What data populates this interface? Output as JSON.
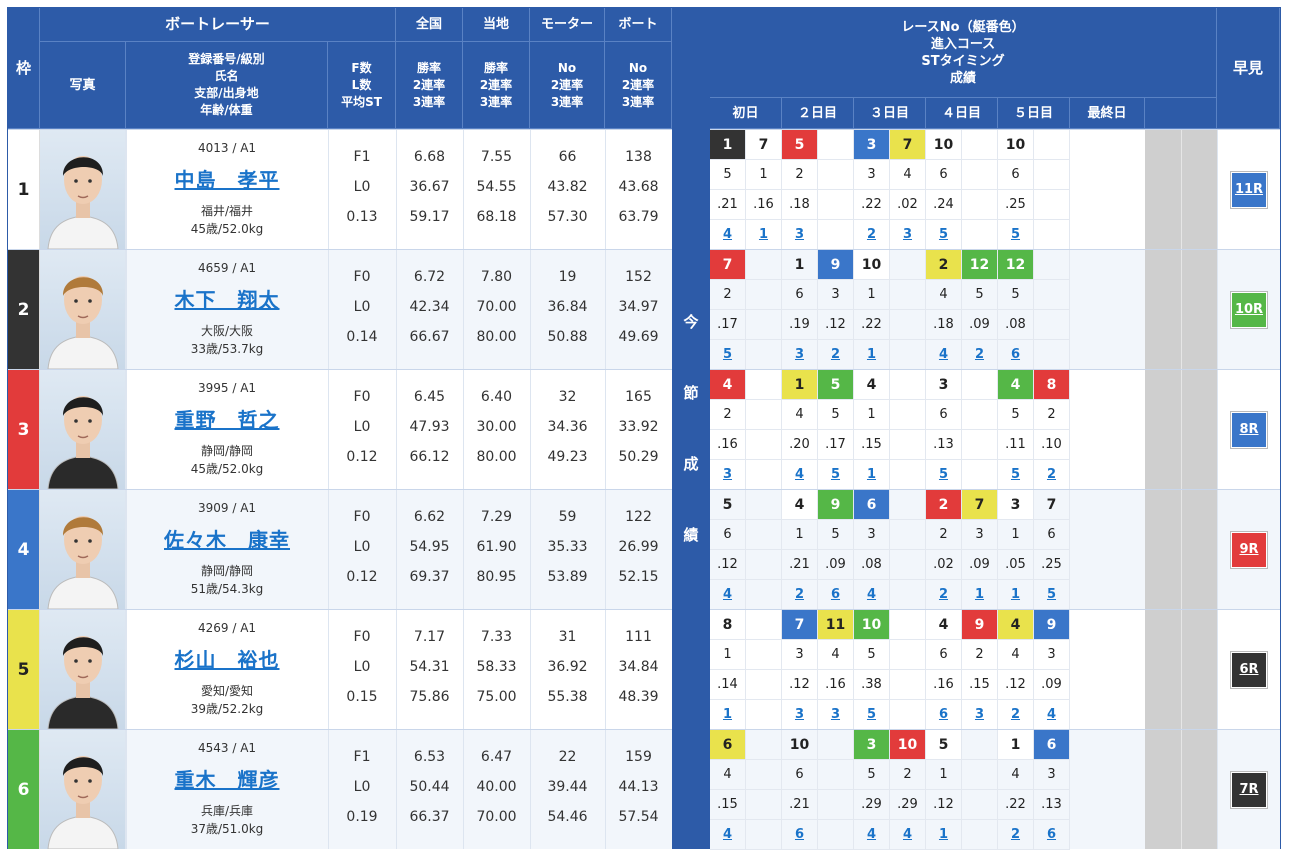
{
  "header": {
    "waku": "枠",
    "boat_racer": "ボートレーサー",
    "photo": "写真",
    "profile": [
      "登録番号/級別",
      "氏名",
      "支部/出身地",
      "年齢/体重"
    ],
    "flst": [
      "F数",
      "L数",
      "平均ST"
    ],
    "zenkoku": "全国",
    "touchi": "当地",
    "motor": "モーター",
    "boat": "ボート",
    "rates": [
      "勝率",
      "2連率",
      "3連率"
    ],
    "no_rates": [
      "No",
      "2連率",
      "3連率"
    ],
    "race_info": [
      "レースNo（艇番色）",
      "進入コース",
      "STタイミング",
      "成績"
    ],
    "days": [
      "初日",
      "２日目",
      "３日目",
      "４日目",
      "５日目",
      "最終日"
    ],
    "hayami": "早見",
    "konsetsu": [
      "今",
      "節",
      "成",
      "績"
    ]
  },
  "colors": {
    "header_bg": "#2d5ba8",
    "boat1": "#ffffff",
    "boat2": "#333333",
    "boat3": "#e23b3b",
    "boat4": "#3a76c9",
    "boat5": "#e9e24c",
    "boat6": "#55b747"
  },
  "racers": [
    {
      "waku": "1",
      "reg": "4013",
      "cls": "A1",
      "name": "中島　孝平",
      "branch": "福井/福井",
      "age_weight": "45歳/52.0kg",
      "f": "F1",
      "l": "L0",
      "st": "0.13",
      "zenkoku": [
        "6.68",
        "36.67",
        "59.17"
      ],
      "touchi": [
        "7.55",
        "54.55",
        "68.18"
      ],
      "motor": [
        "66",
        "43.82",
        "57.30"
      ],
      "boat": [
        "138",
        "43.68",
        "63.79"
      ],
      "hayami": "11R",
      "hayami_color": "#3a76c9"
    },
    {
      "waku": "2",
      "reg": "4659",
      "cls": "A1",
      "name": "木下　翔太",
      "branch": "大阪/大阪",
      "age_weight": "33歳/53.7kg",
      "f": "F0",
      "l": "L0",
      "st": "0.14",
      "zenkoku": [
        "6.72",
        "42.34",
        "66.67"
      ],
      "touchi": [
        "7.80",
        "70.00",
        "80.00"
      ],
      "motor": [
        "19",
        "36.84",
        "50.88"
      ],
      "boat": [
        "152",
        "34.97",
        "49.69"
      ],
      "hayami": "10R",
      "hayami_color": "#55b747"
    },
    {
      "waku": "3",
      "reg": "3995",
      "cls": "A1",
      "name": "重野　哲之",
      "branch": "静岡/静岡",
      "age_weight": "45歳/52.0kg",
      "f": "F0",
      "l": "L0",
      "st": "0.12",
      "zenkoku": [
        "6.45",
        "47.93",
        "66.12"
      ],
      "touchi": [
        "6.40",
        "30.00",
        "80.00"
      ],
      "motor": [
        "32",
        "34.36",
        "49.23"
      ],
      "boat": [
        "165",
        "33.92",
        "50.29"
      ],
      "hayami": "8R",
      "hayami_color": "#3a76c9"
    },
    {
      "waku": "4",
      "reg": "3909",
      "cls": "A1",
      "name": "佐々木　康幸",
      "branch": "静岡/静岡",
      "age_weight": "51歳/54.3kg",
      "f": "F0",
      "l": "L0",
      "st": "0.12",
      "zenkoku": [
        "6.62",
        "54.95",
        "69.37"
      ],
      "touchi": [
        "7.29",
        "61.90",
        "80.95"
      ],
      "motor": [
        "59",
        "35.33",
        "53.89"
      ],
      "boat": [
        "122",
        "26.99",
        "52.15"
      ],
      "hayami": "9R",
      "hayami_color": "#e23b3b"
    },
    {
      "waku": "5",
      "reg": "4269",
      "cls": "A1",
      "name": "杉山　裕也",
      "branch": "愛知/愛知",
      "age_weight": "39歳/52.2kg",
      "f": "F0",
      "l": "L0",
      "st": "0.15",
      "zenkoku": [
        "7.17",
        "54.31",
        "75.86"
      ],
      "touchi": [
        "7.33",
        "58.33",
        "75.00"
      ],
      "motor": [
        "31",
        "36.92",
        "55.38"
      ],
      "boat": [
        "111",
        "34.84",
        "48.39"
      ],
      "hayami": "6R",
      "hayami_color": "#333333"
    },
    {
      "waku": "6",
      "reg": "4543",
      "cls": "A1",
      "name": "重木　輝彦",
      "branch": "兵庫/兵庫",
      "age_weight": "37歳/51.0kg",
      "f": "F1",
      "l": "L0",
      "st": "0.19",
      "zenkoku": [
        "6.53",
        "50.44",
        "66.37"
      ],
      "touchi": [
        "6.47",
        "40.00",
        "70.00"
      ],
      "motor": [
        "22",
        "39.44",
        "54.46"
      ],
      "boat": [
        "159",
        "44.13",
        "57.54"
      ],
      "hayami": "7R",
      "hayami_color": "#333333"
    }
  ],
  "results": [
    [
      [
        "1",
        "5",
        ".21",
        "4",
        1
      ],
      [
        "7",
        "1",
        ".16",
        "1",
        0
      ],
      [
        "5",
        "2",
        ".18",
        "3",
        2
      ],
      [
        "",
        "",
        "",
        "",
        -1
      ],
      [
        "3",
        "3",
        ".22",
        "2",
        3
      ],
      [
        "7",
        "4",
        ".02",
        "3",
        4
      ],
      [
        "10",
        "6",
        ".24",
        "5",
        6
      ],
      [
        "",
        "",
        "",
        "",
        -1
      ],
      [
        "10",
        "6",
        ".25",
        "5",
        6
      ],
      [
        "",
        "",
        "",
        "",
        -1
      ]
    ],
    [
      [
        "7",
        "2",
        ".17",
        "5",
        2
      ],
      [
        "",
        "",
        "",
        "",
        -1
      ],
      [
        "1",
        "6",
        ".19",
        "3",
        6
      ],
      [
        "9",
        "3",
        ".12",
        "2",
        3
      ],
      [
        "10",
        "1",
        ".22",
        "1",
        0
      ],
      [
        "",
        "",
        "",
        "",
        -1
      ],
      [
        "2",
        "4",
        ".18",
        "4",
        4
      ],
      [
        "12",
        "5",
        ".09",
        "2",
        5
      ],
      [
        "12",
        "5",
        ".08",
        "6",
        5
      ],
      [
        "",
        "",
        "",
        "",
        -1
      ]
    ],
    [
      [
        "4",
        "2",
        ".16",
        "3",
        2
      ],
      [
        "",
        "",
        "",
        "",
        -1
      ],
      [
        "1",
        "4",
        ".20",
        "4",
        4
      ],
      [
        "5",
        "5",
        ".17",
        "5",
        5
      ],
      [
        "4",
        "1",
        ".15",
        "1",
        0
      ],
      [
        "",
        "",
        "",
        "",
        -1
      ],
      [
        "3",
        "6",
        ".13",
        "5",
        6
      ],
      [
        "",
        "",
        "",
        "",
        -1
      ],
      [
        "4",
        "5",
        ".11",
        "5",
        5
      ],
      [
        "8",
        "2",
        ".10",
        "2",
        2
      ]
    ],
    [
      [
        "5",
        "6",
        ".12",
        "4",
        6
      ],
      [
        "",
        "",
        "",
        "",
        -1
      ],
      [
        "4",
        "1",
        ".21",
        "2",
        0
      ],
      [
        "9",
        "5",
        ".09",
        "6",
        5
      ],
      [
        "6",
        "3",
        ".08",
        "4",
        3
      ],
      [
        "",
        "",
        "",
        "",
        -1
      ],
      [
        "2",
        "2",
        ".02",
        "2",
        2
      ],
      [
        "7",
        "3",
        ".09",
        "1",
        4
      ],
      [
        "3",
        "1",
        ".05",
        "1",
        0
      ],
      [
        "7",
        "6",
        ".25",
        "5",
        6
      ]
    ],
    [
      [
        "8",
        "1",
        ".14",
        "1",
        0
      ],
      [
        "",
        "",
        "",
        "",
        -1
      ],
      [
        "7",
        "3",
        ".12",
        "3",
        3
      ],
      [
        "11",
        "4",
        ".16",
        "3",
        4
      ],
      [
        "10",
        "5",
        ".38",
        "5",
        5
      ],
      [
        "",
        "",
        "",
        "",
        -1
      ],
      [
        "4",
        "6",
        ".16",
        "6",
        6
      ],
      [
        "9",
        "2",
        ".15",
        "3",
        2
      ],
      [
        "4",
        "4",
        ".12",
        "2",
        4
      ],
      [
        "9",
        "3",
        ".09",
        "4",
        3
      ]
    ],
    [
      [
        "6",
        "4",
        ".15",
        "4",
        4
      ],
      [
        "",
        "",
        "",
        "",
        -1
      ],
      [
        "10",
        "6",
        ".21",
        "6",
        6
      ],
      [
        "",
        "",
        "",
        "",
        -1
      ],
      [
        "3",
        "5",
        ".29",
        "4",
        5
      ],
      [
        "10",
        "2",
        ".29",
        "4",
        2
      ],
      [
        "5",
        "1",
        ".12",
        "1",
        0
      ],
      [
        "",
        "",
        "",
        "",
        -1
      ],
      [
        "1",
        "4",
        ".22",
        "2",
        0
      ],
      [
        "6",
        "3",
        ".13",
        "6",
        3
      ]
    ]
  ]
}
